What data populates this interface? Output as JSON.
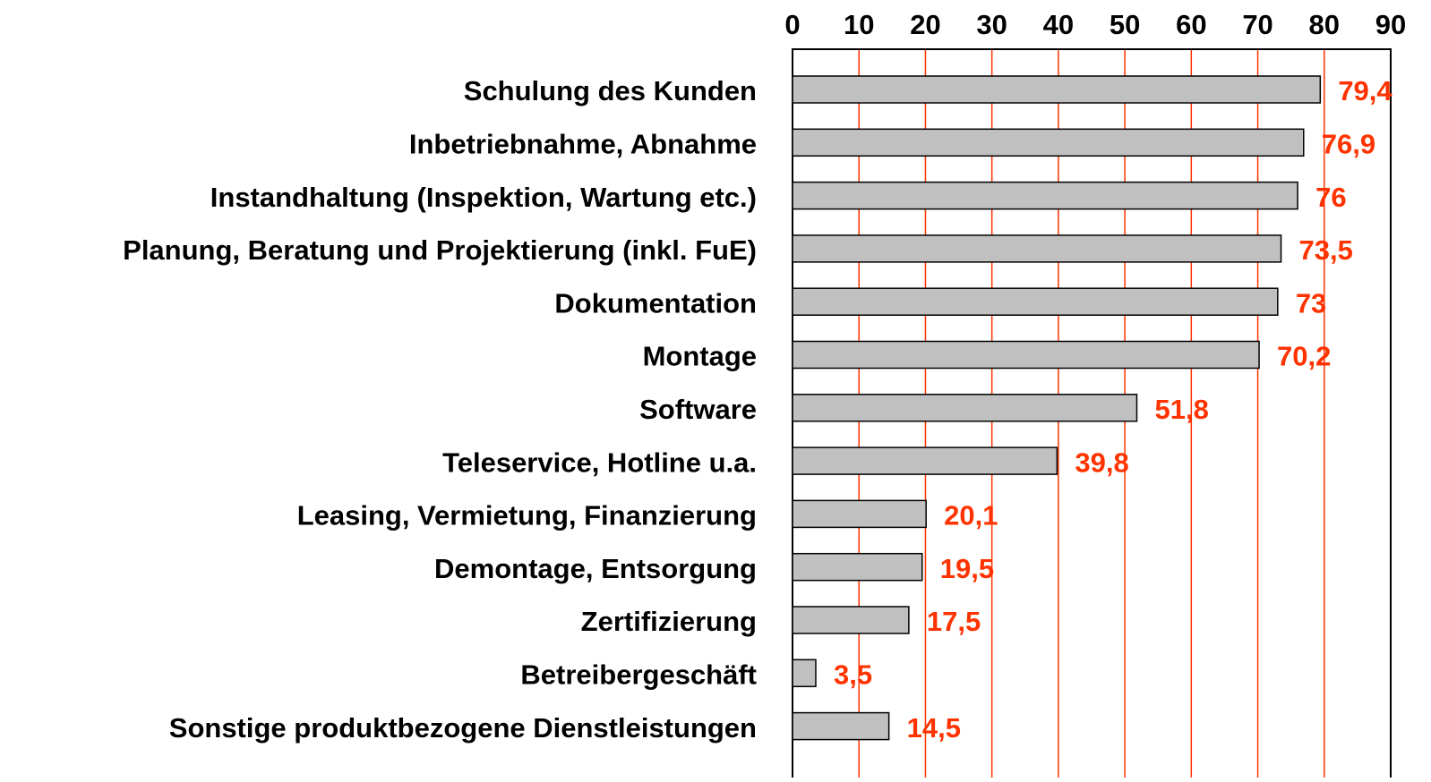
{
  "chart_data": {
    "type": "bar",
    "orientation": "horizontal",
    "categories": [
      "Schulung des Kunden",
      "Inbetriebnahme, Abnahme",
      "Instandhaltung (Inspektion, Wartung etc.)",
      "Planung, Beratung und Projektierung (inkl. FuE)",
      "Dokumentation",
      "Montage",
      "Software",
      "Teleservice, Hotline u.a.",
      "Leasing, Vermietung, Finanzierung",
      "Demontage, Entsorgung",
      "Zertifizierung",
      "Betreibergeschäft",
      "Sonstige produktbezogene Dienstleistungen"
    ],
    "values": [
      79.4,
      76.9,
      76,
      73.5,
      73,
      70.2,
      51.8,
      39.8,
      20.1,
      19.5,
      17.5,
      3.5,
      14.5
    ],
    "value_labels": [
      "79,4",
      "76,9",
      "76",
      "73,5",
      "73",
      "70,2",
      "51,8",
      "39,8",
      "20,1",
      "19,5",
      "17,5",
      "3,5",
      "14,5"
    ],
    "color": "#c0c0c0",
    "grid_color": "#ff3300",
    "label_color": "#ff3300",
    "xlim": [
      0,
      90
    ],
    "xticks": [
      0,
      10,
      20,
      30,
      40,
      50,
      60,
      70,
      80,
      90
    ],
    "grid": true
  }
}
